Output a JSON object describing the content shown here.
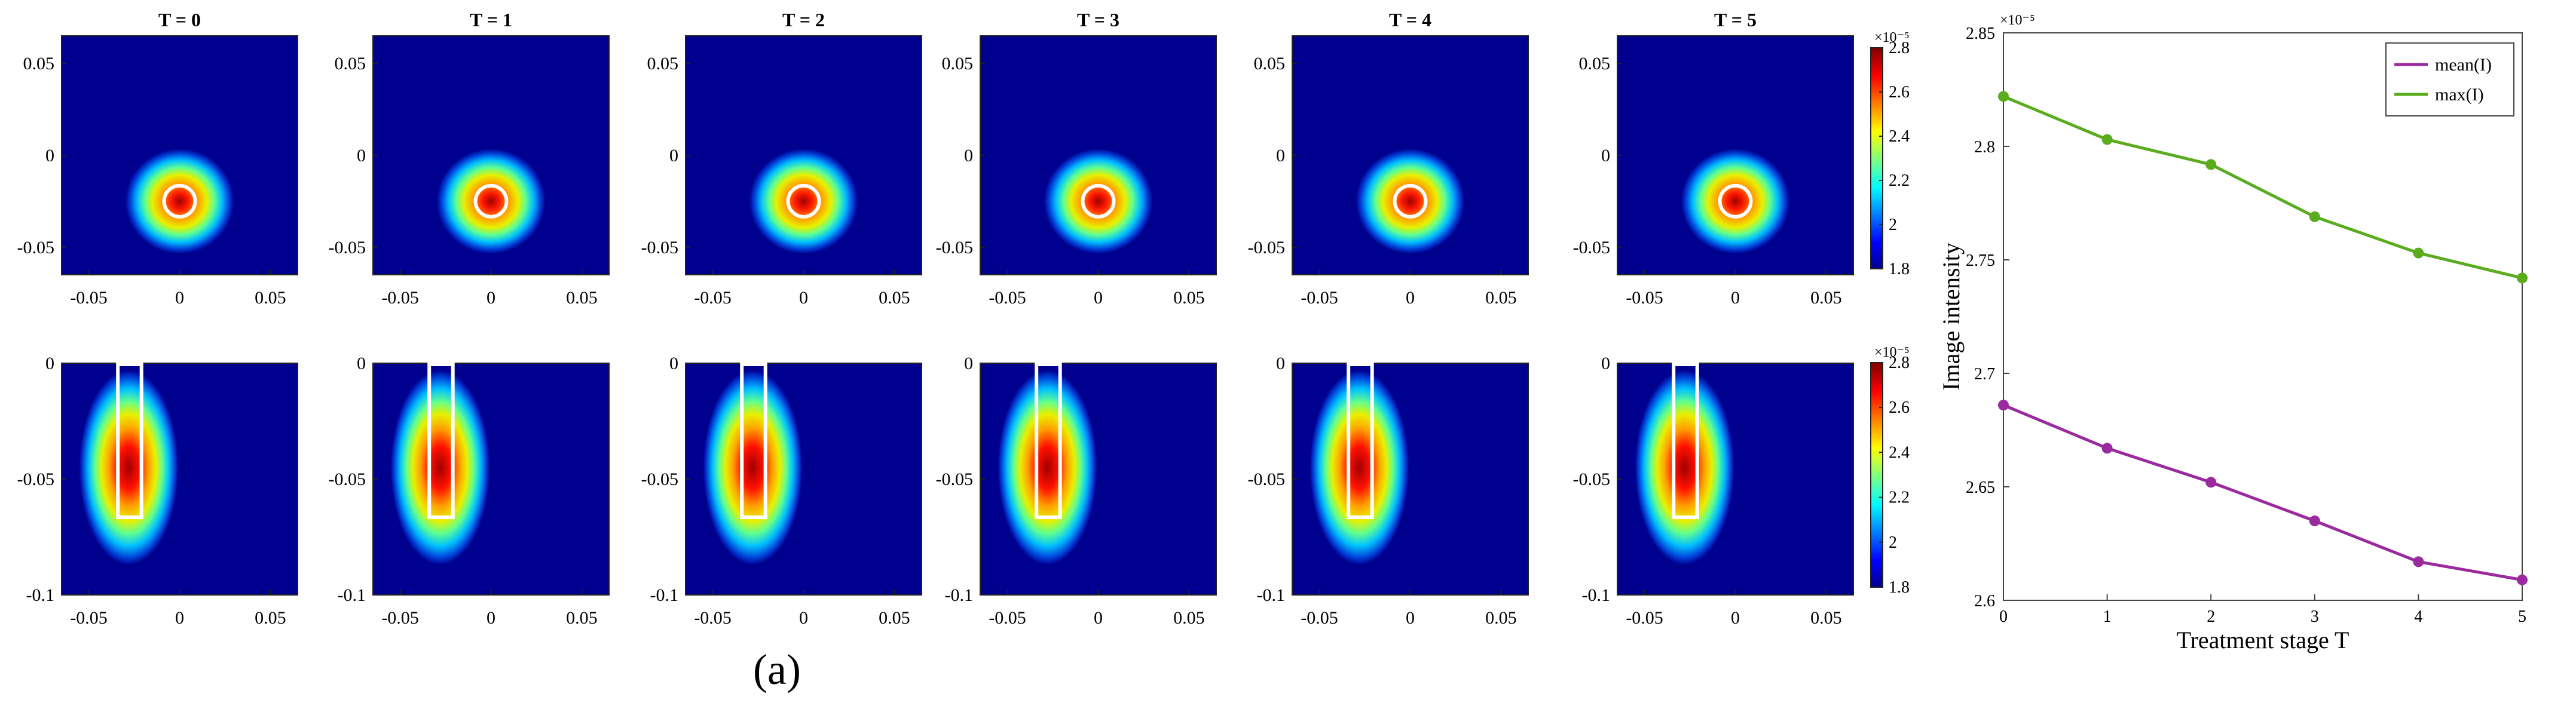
{
  "caption": "(a)",
  "colors": {
    "panel_background": "#00008f",
    "mean_line": "#9b2a9e",
    "max_line": "#5aab1e",
    "marker_outline": "#ffffff"
  },
  "panels": {
    "titles": [
      "T = 0",
      "T = 1",
      "T = 2",
      "T = 3",
      "T = 4",
      "T = 5"
    ],
    "top_row": {
      "x_ticks": [
        "-0.05",
        "0",
        "0.05"
      ],
      "y_ticks": [
        "0.05",
        "0",
        "-0.05"
      ],
      "x_range": [
        -0.065,
        0.065
      ],
      "y_range": [
        -0.065,
        0.065
      ]
    },
    "bottom_row": {
      "x_ticks": [
        "-0.05",
        "0",
        "0.05"
      ],
      "y_ticks": [
        "0",
        "-0.05",
        "-0.1"
      ],
      "x_range": [
        -0.065,
        0.065
      ],
      "y_range": [
        -0.1,
        0
      ]
    }
  },
  "colorbar": {
    "exponent_label": "×10⁻⁵",
    "ticks": [
      "2.8",
      "2.6",
      "2.4",
      "2.2",
      "2",
      "1.8"
    ],
    "range": [
      1.8,
      2.8
    ],
    "colormap": "jet"
  },
  "chart_data": {
    "type": "line",
    "xlabel": "Treatment stage T",
    "ylabel": "Image intensity",
    "y_exponent_label": "×10⁻⁵",
    "x": [
      0,
      1,
      2,
      3,
      4,
      5
    ],
    "xlim": [
      0,
      5
    ],
    "ylim": [
      2.6,
      2.85
    ],
    "y_ticks": [
      "2.6",
      "2.65",
      "2.7",
      "2.75",
      "2.8",
      "2.85"
    ],
    "x_ticks": [
      "0",
      "1",
      "2",
      "3",
      "4",
      "5"
    ],
    "legend_position": "top-right",
    "grid": false,
    "series": [
      {
        "name": "mean(I)",
        "color": "#9b2a9e",
        "values": [
          2.686,
          2.667,
          2.652,
          2.635,
          2.617,
          2.609
        ]
      },
      {
        "name": "max(I)",
        "color": "#5aab1e",
        "values": [
          2.822,
          2.803,
          2.792,
          2.769,
          2.753,
          2.742
        ]
      }
    ]
  }
}
